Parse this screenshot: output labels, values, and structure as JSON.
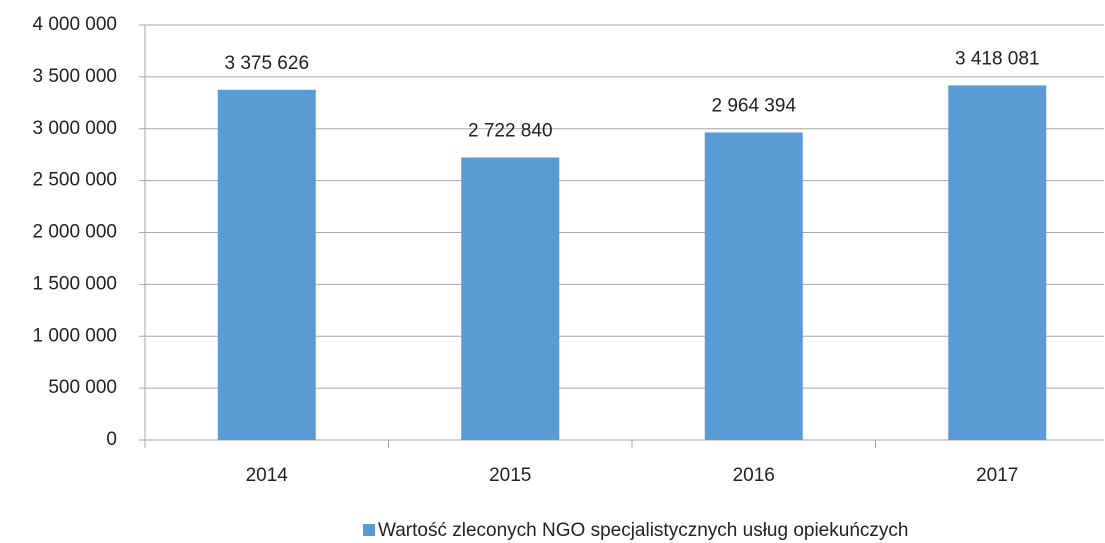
{
  "chart_data": {
    "type": "bar",
    "categories": [
      "2014",
      "2015",
      "2016",
      "2017"
    ],
    "series": [
      {
        "name": "Wartość zleconych NGO specjalistycznych usług opiekuńczych",
        "color": "#5b9bd5",
        "values": [
          3375626,
          2722840,
          2964394,
          3418081
        ],
        "value_labels": [
          "3 375 626",
          "2 722 840",
          "2 964 394",
          "3 418 081"
        ]
      }
    ],
    "ylim": [
      0,
      4000000
    ],
    "yticks": [
      0,
      {
        "value": 500000,
        "label": "500 000"
      },
      {
        "value": 1000000,
        "label": "1 000 000"
      },
      {
        "value": 1500000,
        "label": "1 500 000"
      },
      {
        "value": 2000000,
        "label": "2 000 000"
      },
      {
        "value": 2500000,
        "label": "2 500 000"
      },
      {
        "value": 3000000,
        "label": "3 000 000"
      },
      {
        "value": 3500000,
        "label": "3 500 000"
      },
      {
        "value": 4000000,
        "label": "4 000 000"
      }
    ],
    "grid": true,
    "legend": "bottom"
  }
}
